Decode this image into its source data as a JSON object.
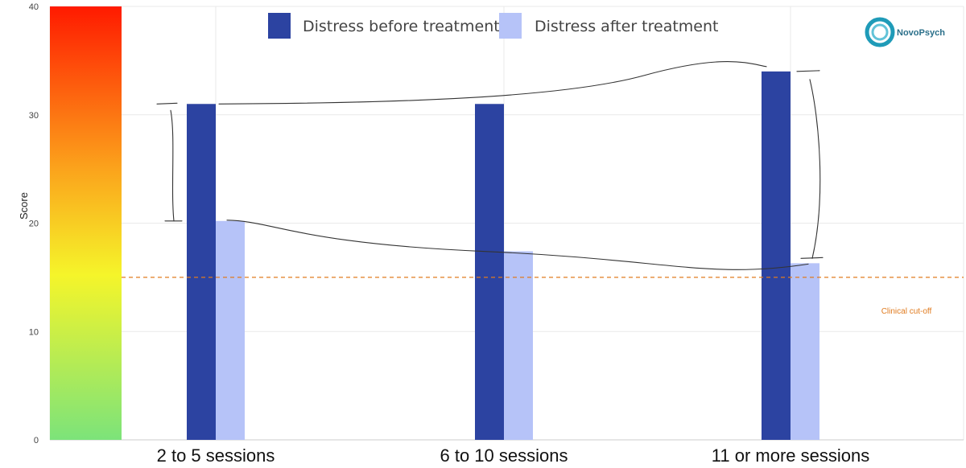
{
  "chart_data": {
    "type": "bar",
    "categories": [
      "2 to 5 sessions",
      "6 to 10 sessions",
      "11 or more sessions"
    ],
    "series": [
      {
        "name": "Distress before treatment",
        "values": [
          31,
          31,
          34
        ],
        "color": "#2c43a1"
      },
      {
        "name": "Distress after treatment",
        "values": [
          20.2,
          17.4,
          16.3
        ],
        "color": "#b6c3f8"
      }
    ],
    "ylabel": "Score",
    "ylim": [
      0,
      40
    ],
    "yticks": [
      "0",
      "10",
      "20",
      "30",
      "40"
    ],
    "grid": true,
    "legend": "top-center",
    "reference_line": {
      "label": "Clinical cut-off",
      "value": 15,
      "color": "#e07b1f"
    },
    "severity_scale": {
      "colors": [
        "#7ce37a",
        "#f5f52a",
        "#fba51c",
        "#ff1a00"
      ]
    }
  },
  "brand": {
    "name": "NovoPsych",
    "color": "#1f9bb8"
  }
}
